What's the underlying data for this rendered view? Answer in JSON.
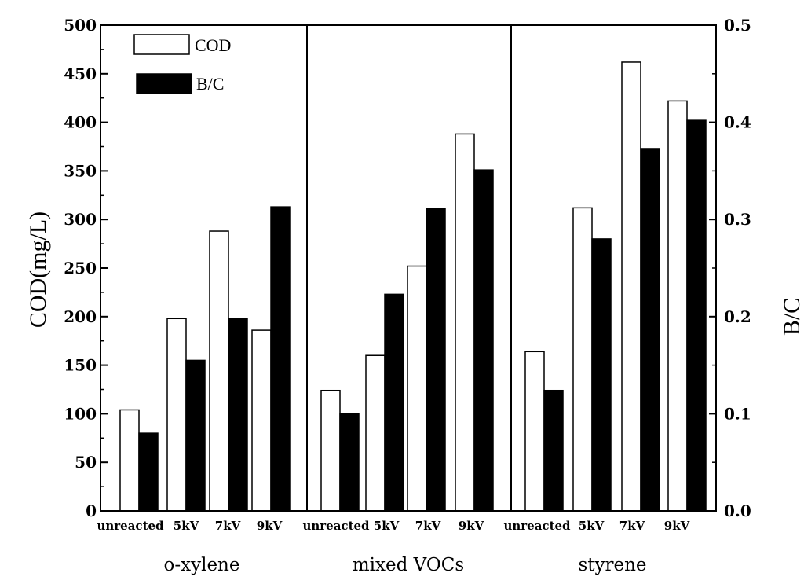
{
  "chart_data": {
    "type": "bar",
    "groups": [
      {
        "name": "o-xylene",
        "categories": [
          "unreacted",
          "5kV",
          "7kV",
          "9kV"
        ]
      },
      {
        "name": "mixed VOCs",
        "categories": [
          "unreacted",
          "5kV",
          "7kV",
          "9kV"
        ]
      },
      {
        "name": "styrene",
        "categories": [
          "unreacted",
          "5kV",
          "7kV",
          "9kV"
        ]
      }
    ],
    "series": [
      {
        "name": "COD",
        "axis": "left",
        "fill": "#ffffff",
        "stroke": "#000000",
        "values": [
          104,
          198,
          288,
          186,
          124,
          160,
          252,
          388,
          164,
          312,
          462,
          422
        ]
      },
      {
        "name": "B/C",
        "axis": "right",
        "fill": "#000000",
        "stroke": "#000000",
        "values": [
          0.08,
          0.155,
          0.198,
          0.313,
          0.1,
          0.223,
          0.311,
          0.351,
          0.124,
          0.28,
          0.373,
          0.402
        ]
      }
    ],
    "ylabel": "COD(mg/L)",
    "y2label": "B/C",
    "ylim": [
      0,
      500
    ],
    "y2lim": [
      0,
      0.5
    ],
    "yticks": [
      "0",
      "50",
      "100",
      "150",
      "200",
      "250",
      "300",
      "350",
      "400",
      "450",
      "500"
    ],
    "y2ticks": [
      "0.0",
      "0.1",
      "0.2",
      "0.3",
      "0.4",
      "0.5"
    ],
    "legend_position": "top-left",
    "grid": false
  }
}
